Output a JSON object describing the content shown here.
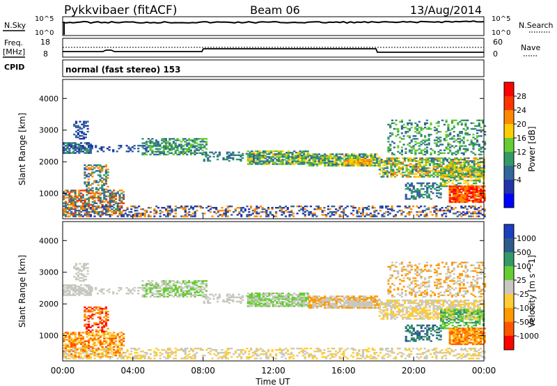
{
  "header": {
    "station": "Pykkvibaer (fitACF)",
    "beam": "Beam 06",
    "date": "13/Aug/2014"
  },
  "top_panels": {
    "nsky": {
      "label": "N.Sky",
      "left_ticks": [
        "10^5",
        "10^0"
      ],
      "right_ticks": [
        "10^5",
        "10^0"
      ],
      "right_label": "N.Search"
    },
    "freq": {
      "label_line1": "Freq.",
      "label_line2": "[MHz]",
      "left_ticks": [
        "18",
        "8"
      ],
      "right_ticks": [
        "60",
        "0"
      ],
      "right_label": "Nave"
    },
    "cpid": {
      "label": "CPID",
      "text": "normal (fast stereo) 153"
    }
  },
  "chart_data": [
    {
      "type": "heatmap",
      "quantity": "power",
      "ylabel": "Slant Range [km]",
      "yticks": [
        "4000",
        "3000",
        "2000",
        "1000"
      ],
      "ylim": [
        200,
        4600
      ],
      "xlim": [
        0,
        24
      ],
      "colorbar_label": "Power [dB]",
      "colorbar_ticks": [
        "28",
        "24",
        "20",
        "16",
        "12",
        "8",
        "4"
      ],
      "colorbar_colors": [
        "#ff0000",
        "#ff3300",
        "#ff8800",
        "#ffcc00",
        "#66cc33",
        "#339966",
        "#336699",
        "#2233aa",
        "#0000ff"
      ]
    },
    {
      "type": "heatmap",
      "quantity": "velocity",
      "ylabel": "Slant Range [km]",
      "yticks": [
        "4000",
        "3000",
        "2000",
        "1000"
      ],
      "ylim": [
        200,
        4600
      ],
      "xlim": [
        0,
        24
      ],
      "xlabel": "Time UT",
      "xticks": [
        "00:00",
        "04:00",
        "08:00",
        "12:00",
        "16:00",
        "20:00",
        "00:00"
      ],
      "colorbar_label": "Velocity [m s^-1]",
      "colorbar_ticks": [
        "1000",
        "500",
        "100",
        "25",
        "-25",
        "-100",
        "-500",
        "-1000"
      ],
      "colorbar_colors": [
        "#1a3fbf",
        "#2e5c8a",
        "#339966",
        "#66cc33",
        "#c8c8c0",
        "#ffcc33",
        "#ff9900",
        "#ff5500",
        "#ff0000"
      ]
    }
  ]
}
